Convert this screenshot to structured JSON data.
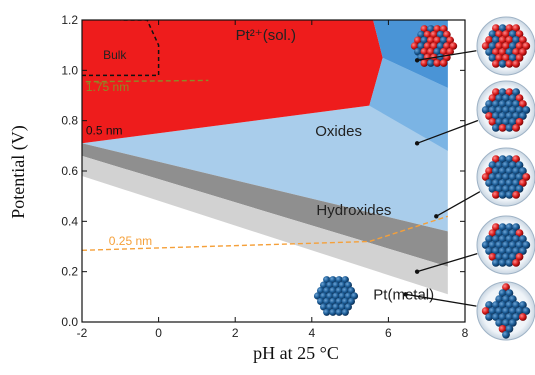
{
  "chart_data": {
    "type": "area",
    "xlabel": "pH at 25 °C",
    "ylabel": "Potential   (V)",
    "xlim": [
      -2,
      8
    ],
    "ylim": [
      0.0,
      1.2
    ],
    "x_ticks": [
      -2,
      0,
      2,
      4,
      6,
      8
    ],
    "y_ticks": [
      0.0,
      0.2,
      0.4,
      0.6,
      0.8,
      1.0,
      1.2
    ],
    "y_tick_labels": [
      "0.0",
      "0.2",
      "0.4",
      "0.6",
      "0.8",
      "1.0",
      "1.2"
    ],
    "regions": [
      {
        "name": "Pt²⁺(sol.)",
        "color": "#ee1c1c",
        "polygon": [
          [
            -2,
            1.2
          ],
          [
            5.6,
            1.2
          ],
          [
            5.85,
            1.05
          ],
          [
            5.5,
            0.86
          ],
          [
            -2,
            0.71
          ]
        ],
        "label_at": [
          2.8,
          1.12
        ]
      },
      {
        "name": "Oxides",
        "color": "#a9cdeb",
        "polygon": [
          [
            -2,
            0.71
          ],
          [
            5.5,
            0.86
          ],
          [
            5.85,
            1.05
          ],
          [
            5.6,
            1.2
          ],
          [
            7.55,
            1.2
          ],
          [
            7.55,
            0.36
          ],
          [
            -2,
            0.71
          ]
        ],
        "label_at": [
          4.7,
          0.74
        ]
      },
      {
        "name": "Hydroxides",
        "color": "#8f8f8f",
        "polygon": [
          [
            -2,
            0.71
          ],
          [
            7.55,
            0.36
          ],
          [
            7.55,
            0.22
          ],
          [
            -2,
            0.66
          ]
        ],
        "label_at": [
          5.1,
          0.425
        ]
      },
      {
        "name": "Pt(metal)",
        "color": "#ffffff",
        "polygon": [],
        "label_at": [
          6.4,
          0.09
        ]
      }
    ],
    "band_layers": [
      {
        "color": "#d2d2d2",
        "polygon": [
          [
            -2,
            0.66
          ],
          [
            7.55,
            0.22
          ],
          [
            7.55,
            0.11
          ],
          [
            -2,
            0.58
          ]
        ]
      }
    ],
    "stripes": [
      {
        "color": "#4a94d6",
        "polygon": [
          [
            5.6,
            1.2
          ],
          [
            5.85,
            1.05
          ],
          [
            7.55,
            0.93
          ],
          [
            7.55,
            1.2
          ]
        ]
      },
      {
        "color": "#7bb4e4",
        "polygon": [
          [
            5.85,
            1.05
          ],
          [
            5.5,
            0.86
          ],
          [
            7.55,
            0.68
          ],
          [
            7.55,
            0.93
          ]
        ]
      }
    ],
    "bulk_box": {
      "label": "Bulk",
      "polygon": [
        [
          -2,
          0.98
        ],
        [
          0.0,
          0.98
        ],
        [
          0.0,
          1.1
        ],
        [
          -0.3,
          1.2
        ],
        [
          -1.0,
          1.2
        ]
      ]
    },
    "annotations": [
      {
        "text": "1.75 nm",
        "color": "#8d8b26",
        "at": [
          -1.9,
          0.917
        ],
        "line": [
          [
            -1.9,
            0.955
          ],
          [
            1.3,
            0.96
          ]
        ]
      },
      {
        "text": "0.5 nm",
        "color": "#111111",
        "at": [
          -1.9,
          0.745
        ]
      },
      {
        "text": "0.25 nm",
        "color": "#f5a03a",
        "at": [
          -1.3,
          0.305
        ],
        "line": [
          [
            -2,
            0.285
          ],
          [
            5.5,
            0.32
          ],
          [
            7.55,
            0.42
          ]
        ]
      }
    ],
    "pointer_targets": [
      [
        6.75,
        1.04
      ],
      [
        6.75,
        0.71
      ],
      [
        7.25,
        0.42
      ],
      [
        6.75,
        0.2
      ],
      [
        6.45,
        0.11
      ]
    ]
  },
  "images": [
    {
      "name": "nanoparticle-oxidized"
    },
    {
      "name": "nanoparticle-oxide-shell"
    },
    {
      "name": "nanoparticle-hydroxide-partial"
    },
    {
      "name": "nanoparticle-hydroxide-light"
    },
    {
      "name": "nanoparticle-metal-octahedral"
    }
  ]
}
